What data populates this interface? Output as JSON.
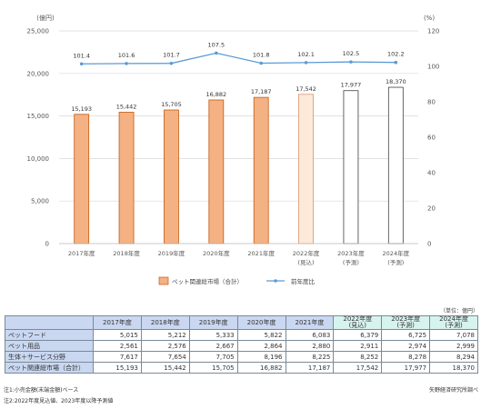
{
  "chart_data": {
    "type": "bar",
    "categories": [
      "2017年度",
      "2018年度",
      "2019年度",
      "2020年度",
      "2021年度",
      "2022年度",
      "2023年度",
      "2024年度"
    ],
    "category_sublabels": [
      "",
      "",
      "",
      "",
      "",
      "(見込)",
      "(予測)",
      "(予測)"
    ],
    "y_left": {
      "unit": "(億円)",
      "range": [
        0,
        25000
      ],
      "ticks": [
        "0",
        "5,000",
        "10,000",
        "15,000",
        "20,000",
        "25,000"
      ]
    },
    "y_right": {
      "unit": "(%)",
      "range": [
        0,
        120
      ],
      "ticks": [
        "0",
        "20",
        "40",
        "60",
        "80",
        "100",
        "120"
      ]
    },
    "series": [
      {
        "name": "ペット関連総市場（合計）",
        "type": "bar",
        "values": [
          15193,
          15442,
          15705,
          16882,
          17187,
          17542,
          17977,
          18370
        ],
        "labels": [
          "15,193",
          "15,442",
          "15,705",
          "16,882",
          "17,187",
          "17,542",
          "17,977",
          "18,370"
        ],
        "style": [
          "actual",
          "actual",
          "actual",
          "actual",
          "actual",
          "estimate",
          "forecast",
          "forecast"
        ]
      },
      {
        "name": "前年度比",
        "type": "line",
        "axis": "right",
        "values": [
          101.4,
          101.6,
          101.7,
          107.5,
          101.8,
          102.1,
          102.5,
          102.2
        ],
        "labels": [
          "101.4",
          "101.6",
          "101.7",
          "107.5",
          "101.8",
          "102.1",
          "102.5",
          "102.2"
        ]
      }
    ],
    "colors": {
      "bar_actual": "#f4b183",
      "bar_actual_border": "#c55a11",
      "bar_estimate": "#fde9d9",
      "bar_estimate_border": "#e0916a",
      "bar_forecast": "#ffffff",
      "bar_forecast_border": "#404040",
      "line": "#5b9bd5",
      "grid": "#d9d9d9"
    },
    "grid": true,
    "legend_position": "bottom"
  },
  "table": {
    "unit_note": "（単位：億円）",
    "headers": [
      {
        "main": "2017年度",
        "sub": "",
        "kind": "hist"
      },
      {
        "main": "2018年度",
        "sub": "",
        "kind": "hist"
      },
      {
        "main": "2019年度",
        "sub": "",
        "kind": "hist"
      },
      {
        "main": "2020年度",
        "sub": "",
        "kind": "hist"
      },
      {
        "main": "2021年度",
        "sub": "",
        "kind": "hist"
      },
      {
        "main": "2022年度",
        "sub": "(見込)",
        "kind": "fcst"
      },
      {
        "main": "2023年度",
        "sub": "(予測)",
        "kind": "fcst"
      },
      {
        "main": "2024年度",
        "sub": "(予測)",
        "kind": "fcst"
      }
    ],
    "rows": [
      {
        "label": "ペットフード",
        "values": [
          "5,015",
          "5,212",
          "5,333",
          "5,822",
          "6,083",
          "6,379",
          "6,725",
          "7,078"
        ]
      },
      {
        "label": "ペット用品",
        "values": [
          "2,561",
          "2,576",
          "2,667",
          "2,864",
          "2,880",
          "2,911",
          "2,974",
          "2,999"
        ]
      },
      {
        "label": "生体＋サービス分野",
        "values": [
          "7,617",
          "7,654",
          "7,705",
          "8,196",
          "8,225",
          "8,252",
          "8,278",
          "8,294"
        ]
      },
      {
        "label": "ペット関連総市場（合計）",
        "values": [
          "15,193",
          "15,442",
          "15,705",
          "16,882",
          "17,187",
          "17,542",
          "17,977",
          "18,370"
        ]
      }
    ]
  },
  "notes": {
    "note1": "注1:小売金額(末端金額)ベース",
    "note2": "注2:2022年度見込値、2023年度以降予測値",
    "source": "矢野経済研究所調べ"
  }
}
